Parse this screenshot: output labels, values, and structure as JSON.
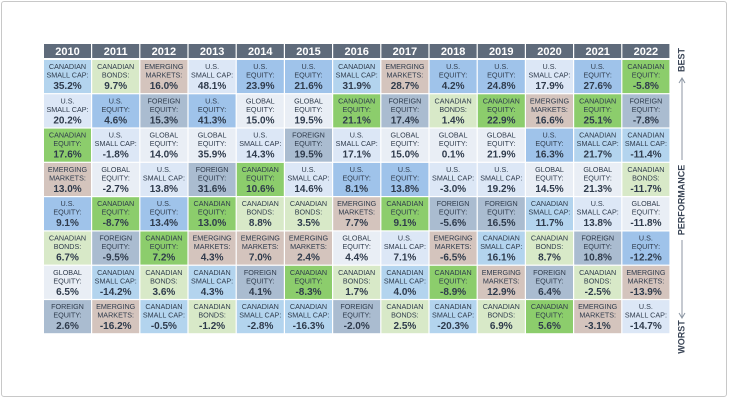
{
  "chart_data": {
    "type": "table",
    "title": "",
    "axis_label": "PERFORMANCE",
    "best_label": "BEST",
    "worst_label": "WORST",
    "years": [
      "2010",
      "2011",
      "2012",
      "2013",
      "2014",
      "2015",
      "2016",
      "2017",
      "2018",
      "2019",
      "2020",
      "2021",
      "2022"
    ],
    "asset_colors": {
      "CANADIAN SMALL CAP": "#b3d4ee",
      "CANADIAN BONDS": "#d8e9c8",
      "EMERGING MARKETS": "#d4c4bd",
      "U.S. SMALL CAP": "#dce7f6",
      "U.S. EQUITY": "#9fc3ea",
      "GLOBAL EQUITY": "#e9eef5",
      "FOREIGN EQUITY": "#aabcd0",
      "CANADIAN EQUITY": "#8ccd6c"
    },
    "columns": [
      [
        [
          "CANADIAN SMALL CAP",
          "35.2%"
        ],
        [
          "U.S. SMALL CAP",
          "20.2%"
        ],
        [
          "CANADIAN EQUITY",
          "17.6%"
        ],
        [
          "EMERGING MARKETS",
          "13.0%"
        ],
        [
          "U.S. EQUITY",
          "9.1%"
        ],
        [
          "CANADIAN BONDS",
          "6.7%"
        ],
        [
          "GLOBAL EQUITY",
          "6.5%"
        ],
        [
          "FOREIGN EQUITY",
          "2.6%"
        ]
      ],
      [
        [
          "CANADIAN BONDS",
          "9.7%"
        ],
        [
          "U.S. EQUITY",
          "4.6%"
        ],
        [
          "U.S. SMALL CAP",
          "-1.8%"
        ],
        [
          "GLOBAL EQUITY",
          "-2.7%"
        ],
        [
          "CANADIAN EQUITY",
          "-8.7%"
        ],
        [
          "FOREIGN EQUITY",
          "-9.5%"
        ],
        [
          "CANADIAN SMALL CAP",
          "-14.2%"
        ],
        [
          "EMERGING MARKETS",
          "-16.2%"
        ]
      ],
      [
        [
          "EMERGING MARKETS",
          "16.0%"
        ],
        [
          "FOREIGN EQUITY",
          "15.3%"
        ],
        [
          "GLOBAL EQUITY",
          "14.0%"
        ],
        [
          "U.S. SMALL CAP",
          "13.8%"
        ],
        [
          "U.S. EQUITY",
          "13.4%"
        ],
        [
          "CANADIAN EQUITY",
          "7.2%"
        ],
        [
          "CANADIAN BONDS",
          "3.6%"
        ],
        [
          "CANADIAN SMALL CAP",
          "-0.5%"
        ]
      ],
      [
        [
          "U.S. SMALL CAP",
          "48.1%"
        ],
        [
          "U.S. EQUITY",
          "41.3%"
        ],
        [
          "GLOBAL EQUITY",
          "35.9%"
        ],
        [
          "FOREIGN EQUITY",
          "31.6%"
        ],
        [
          "CANADIAN EQUITY",
          "13.0%"
        ],
        [
          "EMERGING MARKETS",
          "4.3%"
        ],
        [
          "CANADIAN SMALL CAP",
          "4.3%"
        ],
        [
          "CANADIAN BONDS",
          "-1.2%"
        ]
      ],
      [
        [
          "U.S. EQUITY",
          "23.9%"
        ],
        [
          "GLOBAL EQUITY",
          "15.0%"
        ],
        [
          "U.S. SMALL CAP",
          "14.3%"
        ],
        [
          "CANADIAN EQUITY",
          "10.6%"
        ],
        [
          "CANADIAN BONDS",
          "8.8%"
        ],
        [
          "EMERGING MARKETS",
          "7.0%"
        ],
        [
          "FOREIGN EQUITY",
          "4.1%"
        ],
        [
          "CANADIAN SMALL CAP",
          "-2.8%"
        ]
      ],
      [
        [
          "U.S. EQUITY",
          "21.6%"
        ],
        [
          "GLOBAL EQUITY",
          "19.5%"
        ],
        [
          "FOREIGN EQUITY",
          "19.5%"
        ],
        [
          "U.S. SMALL CAP",
          "14.6%"
        ],
        [
          "CANADIAN BONDS",
          "3.5%"
        ],
        [
          "EMERGING MARKETS",
          "2.4%"
        ],
        [
          "CANADIAN EQUITY",
          "-8.3%"
        ],
        [
          "CANADIAN SMALL CAP",
          "-16.3%"
        ]
      ],
      [
        [
          "CANADIAN SMALL CAP",
          "31.9%"
        ],
        [
          "CANADIAN EQUITY",
          "21.1%"
        ],
        [
          "U.S. SMALL CAP",
          "17.1%"
        ],
        [
          "U.S. EQUITY",
          "8.1%"
        ],
        [
          "EMERGING MARKETS",
          "7.7%"
        ],
        [
          "GLOBAL EQUITY",
          "4.4%"
        ],
        [
          "CANADIAN BONDS",
          "1.7%"
        ],
        [
          "FOREIGN EQUITY",
          "-2.0%"
        ]
      ],
      [
        [
          "EMERGING MARKETS",
          "28.7%"
        ],
        [
          "FOREIGN EQUITY",
          "17.4%"
        ],
        [
          "GLOBAL EQUITY",
          "15.0%"
        ],
        [
          "U.S. EQUITY",
          "13.8%"
        ],
        [
          "CANADIAN EQUITY",
          "9.1%"
        ],
        [
          "U.S. SMALL CAP",
          "7.1%"
        ],
        [
          "CANADIAN SMALL CAP",
          "4.0%"
        ],
        [
          "CANADIAN BONDS",
          "2.5%"
        ]
      ],
      [
        [
          "U.S. EQUITY",
          "4.2%"
        ],
        [
          "CANADIAN BONDS",
          "1.4%"
        ],
        [
          "GLOBAL EQUITY",
          "0.1%"
        ],
        [
          "U.S. SMALL CAP",
          "-3.0%"
        ],
        [
          "FOREIGN EQUITY",
          "-5.6%"
        ],
        [
          "EMERGING MARKETS",
          "-6.5%"
        ],
        [
          "CANADIAN EQUITY",
          "-8.9%"
        ],
        [
          "CANADIAN SMALL CAP",
          "-20.3%"
        ]
      ],
      [
        [
          "U.S. EQUITY",
          "24.8%"
        ],
        [
          "CANADIAN EQUITY",
          "22.9%"
        ],
        [
          "GLOBAL EQUITY",
          "21.9%"
        ],
        [
          "U.S. SMALL CAP",
          "19.2%"
        ],
        [
          "FOREIGN EQUITY",
          "16.5%"
        ],
        [
          "CANADIAN SMALL CAP",
          "16.1%"
        ],
        [
          "EMERGING MARKETS",
          "12.9%"
        ],
        [
          "CANADIAN BONDS",
          "6.9%"
        ]
      ],
      [
        [
          "U.S. SMALL CAP",
          "17.9%"
        ],
        [
          "EMERGING MARKETS",
          "16.6%"
        ],
        [
          "U.S. EQUITY",
          "16.3%"
        ],
        [
          "GLOBAL EQUITY",
          "14.5%"
        ],
        [
          "CANADIAN SMALL CAP",
          "11.7%"
        ],
        [
          "CANADIAN BONDS",
          "8.7%"
        ],
        [
          "FOREIGN EQUITY",
          "6.4%"
        ],
        [
          "CANADIAN EQUITY",
          "5.6%"
        ]
      ],
      [
        [
          "U.S. EQUITY",
          "27.6%"
        ],
        [
          "CANADIAN EQUITY",
          "25.1%"
        ],
        [
          "CANADIAN SMALL CAP",
          "21.7%"
        ],
        [
          "GLOBAL EQUITY",
          "21.3%"
        ],
        [
          "U.S. SMALL CAP",
          "13.8%"
        ],
        [
          "FOREIGN EQUITY",
          "10.8%"
        ],
        [
          "CANADIAN BONDS",
          "-2.5%"
        ],
        [
          "EMERGING MARKETS",
          "-3.1%"
        ]
      ],
      [
        [
          "CANADIAN EQUITY",
          "-5.8%"
        ],
        [
          "FOREIGN EQUITY",
          "-7.8%"
        ],
        [
          "CANADIAN SMALL CAP",
          "-11.4%"
        ],
        [
          "CANADIAN BONDS",
          "-11.7%"
        ],
        [
          "GLOBAL EQUITY",
          "-11.8%"
        ],
        [
          "U.S. EQUITY",
          "-12.2%"
        ],
        [
          "EMERGING MARKETS",
          "-13.9%"
        ],
        [
          "U.S. SMALL CAP",
          "-14.7%"
        ]
      ]
    ]
  }
}
